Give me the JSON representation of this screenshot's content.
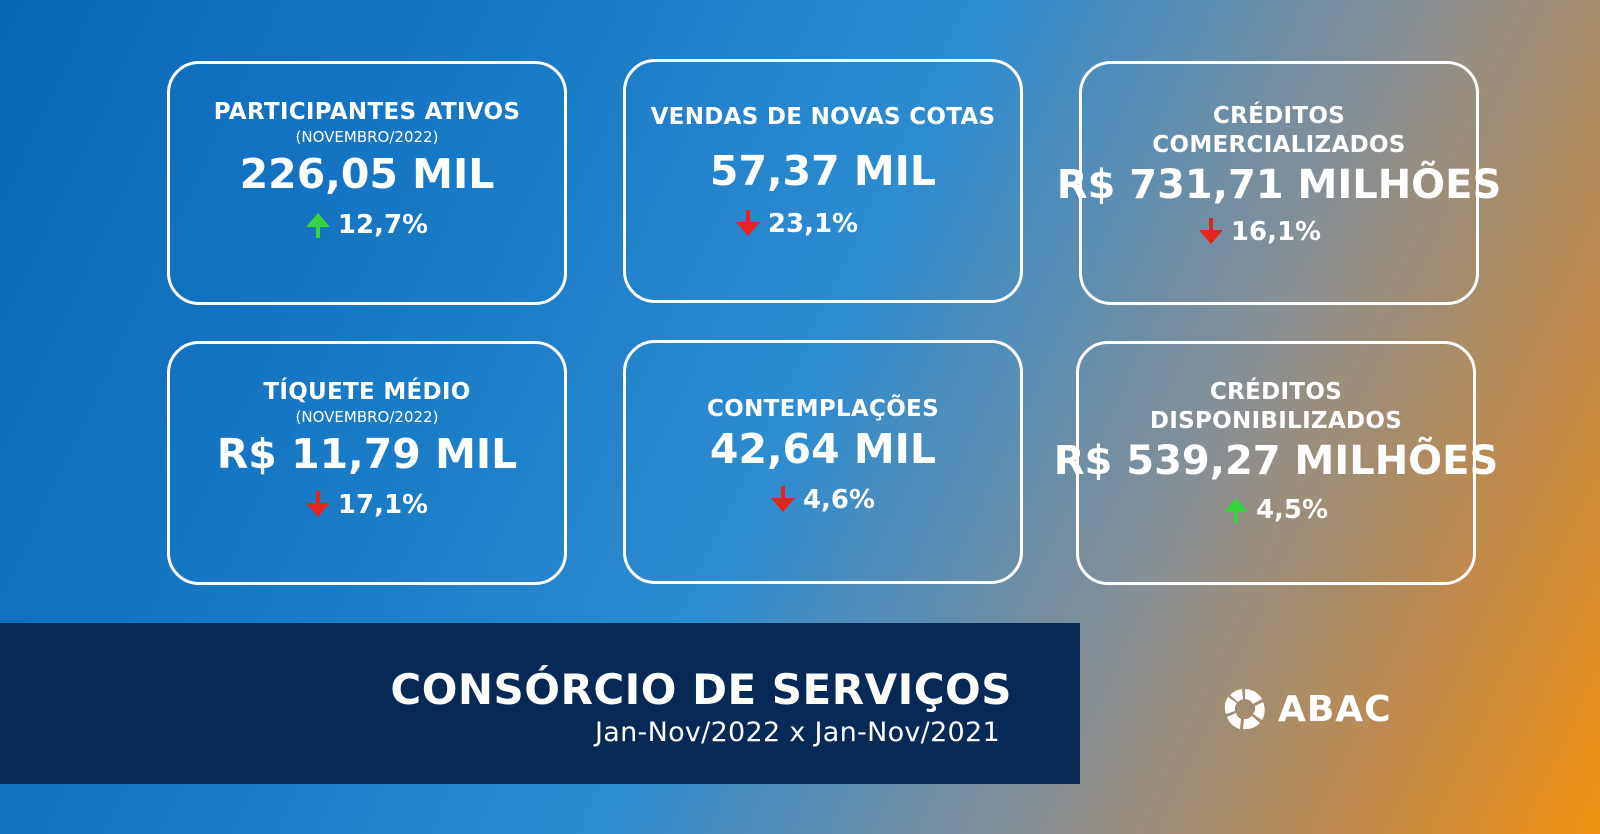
{
  "cards": [
    {
      "title": "PARTICIPANTES ATIVOS",
      "subtitle": "(NOVEMBRO/2022)",
      "value": "226,05 MIL",
      "change": "12,7%",
      "direction": "up"
    },
    {
      "title": "VENDAS DE NOVAS COTAS",
      "subtitle": "",
      "value": "57,37 MIL",
      "change": "23,1%",
      "direction": "down"
    },
    {
      "title_line1": "CRÉDITOS",
      "title_line2": "COMERCIALIZADOS",
      "value": "R$ 731,71 MILHÕES",
      "change": "16,1%",
      "direction": "down"
    },
    {
      "title": "TÍQUETE MÉDIO",
      "subtitle": "(NOVEMBRO/2022)",
      "value": "R$ 11,79 MIL",
      "change": "17,1%",
      "direction": "down"
    },
    {
      "title": "CONTEMPLAÇÕES",
      "value": "42,64 MIL",
      "change": "4,6%",
      "direction": "down"
    },
    {
      "title_line1": "CRÉDITOS",
      "title_line2": "DISPONIBILIZADOS",
      "value": "R$ 539,27 MILHÕES",
      "change": "4,5%",
      "direction": "up"
    }
  ],
  "banner": {
    "title": "CONSÓRCIO DE SERVIÇOS",
    "subtitle": "Jan-Nov/2022 x Jan-Nov/2021"
  },
  "logo": {
    "text": "ABAC",
    "icon": "abac-logo-icon"
  },
  "colors": {
    "up": "#38d43c",
    "down": "#e8221c",
    "banner": "#062a55"
  }
}
